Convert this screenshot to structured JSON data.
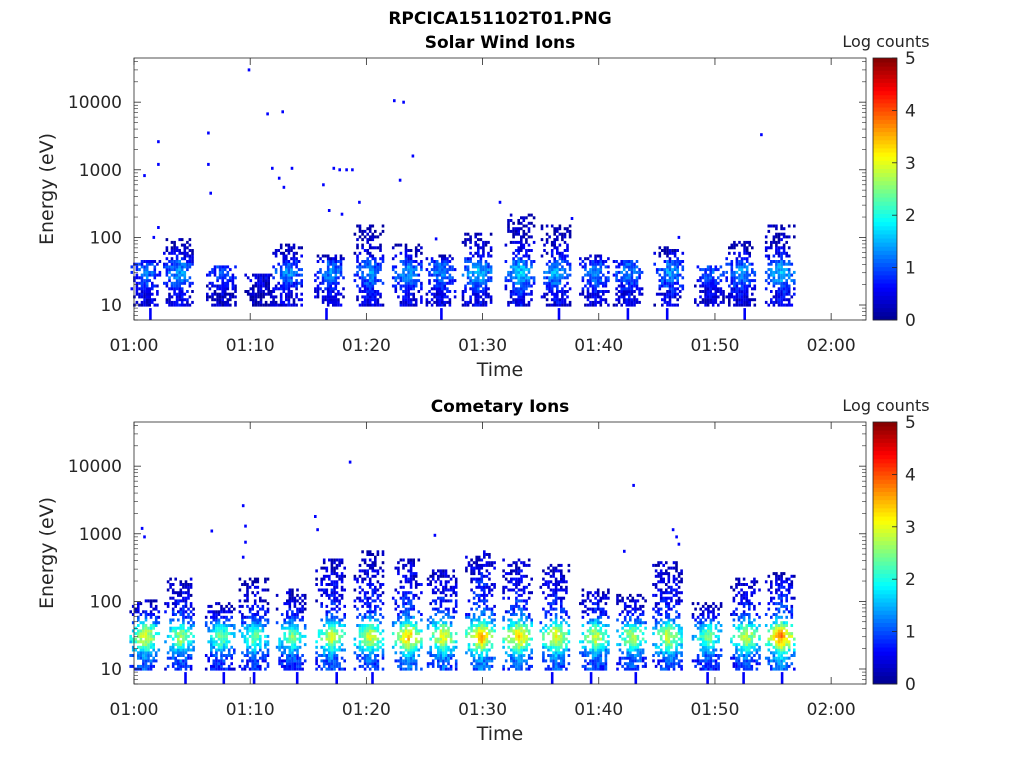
{
  "figure_title": "RPCICA151102T01.PNG",
  "colorbar_label": "Log counts",
  "colormap": [
    "#00008f",
    "#0000ff",
    "#0080ff",
    "#00ffff",
    "#80ff80",
    "#ffff00",
    "#ff8000",
    "#ff0000",
    "#800000"
  ],
  "chart_data": [
    {
      "type": "heatmap",
      "title": "Solar Wind Ions",
      "xlabel": "Time",
      "ylabel": "Energy (eV)",
      "xlim": [
        "01:00",
        "02:03"
      ],
      "ylim": [
        6,
        45000
      ],
      "y_scale": "log",
      "x_ticks": [
        "01:00",
        "01:10",
        "01:20",
        "01:30",
        "01:40",
        "01:50",
        "02:00"
      ],
      "y_ticks": [
        "10",
        "100",
        "1000",
        "10000"
      ],
      "colorbar": {
        "label": "Log counts",
        "range": [
          0,
          5
        ],
        "ticks": [
          "0",
          "1",
          "2",
          "3",
          "4",
          "5"
        ]
      },
      "bursts": [
        {
          "t": 1.0,
          "level": 1.2,
          "top": 45
        },
        {
          "t": 3.8,
          "level": 1.4,
          "top": 100
        },
        {
          "t": 7.5,
          "level": 1.0,
          "top": 40
        },
        {
          "t": 10.8,
          "level": 0.6,
          "top": 28
        },
        {
          "t": 13.2,
          "level": 1.3,
          "top": 80
        },
        {
          "t": 16.8,
          "level": 1.3,
          "top": 55
        },
        {
          "t": 20.2,
          "level": 1.3,
          "top": 150
        },
        {
          "t": 23.5,
          "level": 1.4,
          "top": 80
        },
        {
          "t": 26.4,
          "level": 1.3,
          "top": 55
        },
        {
          "t": 29.5,
          "level": 1.6,
          "top": 120
        },
        {
          "t": 33.2,
          "level": 1.7,
          "top": 230
        },
        {
          "t": 36.3,
          "level": 1.5,
          "top": 160
        },
        {
          "t": 39.6,
          "level": 1.3,
          "top": 55
        },
        {
          "t": 42.5,
          "level": 1.3,
          "top": 45
        },
        {
          "t": 46.0,
          "level": 1.4,
          "top": 75
        },
        {
          "t": 49.5,
          "level": 1.1,
          "top": 40
        },
        {
          "t": 52.2,
          "level": 1.4,
          "top": 85
        },
        {
          "t": 55.6,
          "level": 1.6,
          "top": 160
        }
      ],
      "sparse_points": [
        {
          "t": 0.9,
          "e": 820
        },
        {
          "t": 1.7,
          "e": 100
        },
        {
          "t": 2.1,
          "e": 2600
        },
        {
          "t": 2.1,
          "e": 1200
        },
        {
          "t": 2.1,
          "e": 140
        },
        {
          "t": 6.4,
          "e": 3500
        },
        {
          "t": 6.4,
          "e": 1200
        },
        {
          "t": 6.6,
          "e": 450
        },
        {
          "t": 9.9,
          "e": 30000
        },
        {
          "t": 11.5,
          "e": 6700
        },
        {
          "t": 12.8,
          "e": 7200
        },
        {
          "t": 11.9,
          "e": 1050
        },
        {
          "t": 12.5,
          "e": 750
        },
        {
          "t": 12.9,
          "e": 550
        },
        {
          "t": 13.6,
          "e": 1050
        },
        {
          "t": 16.3,
          "e": 600
        },
        {
          "t": 16.8,
          "e": 250
        },
        {
          "t": 17.2,
          "e": 1050
        },
        {
          "t": 17.7,
          "e": 1000
        },
        {
          "t": 18.3,
          "e": 1000
        },
        {
          "t": 17.9,
          "e": 220
        },
        {
          "t": 18.8,
          "e": 1000
        },
        {
          "t": 19.4,
          "e": 330
        },
        {
          "t": 22.4,
          "e": 10500
        },
        {
          "t": 23.2,
          "e": 10000
        },
        {
          "t": 22.9,
          "e": 700
        },
        {
          "t": 24.0,
          "e": 1600
        },
        {
          "t": 26.0,
          "e": 95
        },
        {
          "t": 31.5,
          "e": 330
        },
        {
          "t": 37.7,
          "e": 190
        },
        {
          "t": 46.9,
          "e": 100
        },
        {
          "t": 54.0,
          "e": 3300
        }
      ]
    },
    {
      "type": "heatmap",
      "title": "Cometary Ions",
      "xlabel": "Time",
      "ylabel": "Energy (eV)",
      "xlim": [
        "01:00",
        "02:03"
      ],
      "ylim": [
        6,
        45000
      ],
      "y_scale": "log",
      "x_ticks": [
        "01:00",
        "01:10",
        "01:20",
        "01:30",
        "01:40",
        "01:50",
        "02:00"
      ],
      "y_ticks": [
        "10",
        "100",
        "1000",
        "10000"
      ],
      "colorbar": {
        "label": "Log counts",
        "range": [
          0,
          5
        ],
        "ticks": [
          "0",
          "1",
          "2",
          "3",
          "4",
          "5"
        ]
      },
      "bursts": [
        {
          "t": 0.9,
          "level": 3.0,
          "top": 110
        },
        {
          "t": 3.9,
          "level": 2.7,
          "top": 230
        },
        {
          "t": 7.4,
          "level": 2.4,
          "top": 100
        },
        {
          "t": 10.3,
          "level": 2.4,
          "top": 220
        },
        {
          "t": 13.5,
          "level": 2.5,
          "top": 150
        },
        {
          "t": 16.9,
          "level": 2.9,
          "top": 450
        },
        {
          "t": 20.2,
          "level": 3.0,
          "top": 560
        },
        {
          "t": 23.5,
          "level": 3.4,
          "top": 420
        },
        {
          "t": 26.5,
          "level": 3.1,
          "top": 300
        },
        {
          "t": 29.8,
          "level": 3.5,
          "top": 560
        },
        {
          "t": 33.0,
          "level": 3.4,
          "top": 420
        },
        {
          "t": 36.2,
          "level": 3.1,
          "top": 360
        },
        {
          "t": 39.6,
          "level": 2.9,
          "top": 160
        },
        {
          "t": 42.8,
          "level": 2.8,
          "top": 130
        },
        {
          "t": 45.9,
          "level": 2.9,
          "top": 380
        },
        {
          "t": 49.3,
          "level": 2.5,
          "top": 100
        },
        {
          "t": 52.6,
          "level": 2.9,
          "top": 230
        },
        {
          "t": 55.6,
          "level": 3.7,
          "top": 280
        }
      ],
      "sparse_points": [
        {
          "t": 0.7,
          "e": 1200
        },
        {
          "t": 0.9,
          "e": 900
        },
        {
          "t": 6.7,
          "e": 1100
        },
        {
          "t": 9.4,
          "e": 2600
        },
        {
          "t": 9.6,
          "e": 1300
        },
        {
          "t": 9.6,
          "e": 750
        },
        {
          "t": 9.4,
          "e": 450
        },
        {
          "t": 15.6,
          "e": 1800
        },
        {
          "t": 15.8,
          "e": 1150
        },
        {
          "t": 18.6,
          "e": 11500
        },
        {
          "t": 25.9,
          "e": 950
        },
        {
          "t": 42.2,
          "e": 550
        },
        {
          "t": 43.0,
          "e": 5200
        },
        {
          "t": 46.4,
          "e": 1150
        },
        {
          "t": 46.7,
          "e": 900
        },
        {
          "t": 46.9,
          "e": 700
        }
      ]
    }
  ]
}
